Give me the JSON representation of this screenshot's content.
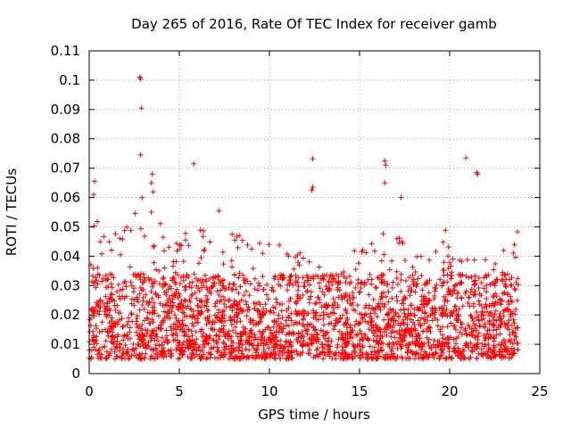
{
  "chart_data": {
    "type": "scatter",
    "title": "Day 265 of 2016, Rate Of TEC Index for receiver gamb",
    "xlabel": "GPS time / hours",
    "ylabel": "ROTI / TECUs",
    "xlim": [
      0,
      25
    ],
    "ylim": [
      0,
      0.11
    ],
    "xticks": [
      0,
      5,
      10,
      15,
      20,
      25
    ],
    "xtick_labels": [
      "0",
      "5",
      "10",
      "15",
      "20",
      "25"
    ],
    "yticks": [
      0,
      0.01,
      0.02,
      0.03,
      0.04,
      0.05,
      0.06,
      0.07,
      0.08,
      0.09,
      0.1,
      0.11
    ],
    "ytick_labels": [
      "0",
      "0.01",
      "0.02",
      "0.03",
      "0.04",
      "0.05",
      "0.06",
      "0.07",
      "0.08",
      "0.09",
      "0.1",
      "0.11"
    ],
    "grid": true,
    "marker": "+",
    "color": "#ff0000",
    "series": [
      {
        "name": "ROTI",
        "x_range": [
          0,
          23.8
        ],
        "typical_range": [
          0.005,
          0.025
        ],
        "envelope_x": [
          0,
          0.3,
          1.0,
          2.0,
          2.8,
          3.5,
          4.5,
          5.8,
          7.0,
          8.5,
          10.0,
          12.5,
          14.0,
          15.0,
          16.5,
          17.5,
          19.0,
          20.5,
          21.5,
          22.5,
          23.8
        ],
        "envelope_max": [
          0.035,
          0.06,
          0.048,
          0.05,
          0.06,
          0.065,
          0.045,
          0.055,
          0.045,
          0.05,
          0.045,
          0.04,
          0.035,
          0.045,
          0.05,
          0.045,
          0.048,
          0.05,
          0.04,
          0.038,
          0.05
        ],
        "outliers": [
          {
            "x": 2.8,
            "y": 0.101
          },
          {
            "x": 2.85,
            "y": 0.1005
          },
          {
            "x": 2.9,
            "y": 0.0905
          },
          {
            "x": 2.85,
            "y": 0.0745
          },
          {
            "x": 12.4,
            "y": 0.0732
          },
          {
            "x": 12.35,
            "y": 0.0625
          },
          {
            "x": 12.4,
            "y": 0.0635
          },
          {
            "x": 16.4,
            "y": 0.0725
          },
          {
            "x": 16.45,
            "y": 0.071
          },
          {
            "x": 16.4,
            "y": 0.065
          },
          {
            "x": 20.9,
            "y": 0.0735
          },
          {
            "x": 21.5,
            "y": 0.0685
          },
          {
            "x": 21.55,
            "y": 0.068
          },
          {
            "x": 5.8,
            "y": 0.0715
          },
          {
            "x": 3.5,
            "y": 0.068
          },
          {
            "x": 3.45,
            "y": 0.065
          },
          {
            "x": 0.3,
            "y": 0.0655
          },
          {
            "x": 0.25,
            "y": 0.061
          },
          {
            "x": 17.3,
            "y": 0.06
          },
          {
            "x": 7.2,
            "y": 0.0555
          }
        ]
      }
    ]
  }
}
